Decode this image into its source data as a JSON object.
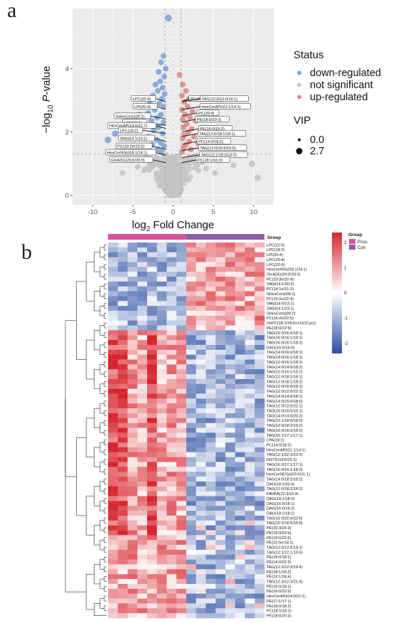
{
  "panel_labels": {
    "a": "a",
    "b": "b"
  },
  "chart_data": [
    {
      "type": "scatter",
      "xlabel_main": "log",
      "xlabel_sub": "2",
      "xlabel_rest": " Fold Change",
      "ylabel_prefix": "−log",
      "ylabel_sub": "10",
      "ylabel_italic": "P",
      "ylabel_rest": "-value",
      "xlim": [
        -12.5,
        12.5
      ],
      "ylim": [
        -0.3,
        5.9
      ],
      "xticks": [
        -10,
        -5,
        0,
        5,
        10
      ],
      "yticks": [
        0,
        2,
        4
      ],
      "threshold_x": [
        -1,
        1
      ],
      "threshold_y": 1.3,
      "legend_status_title": "Status",
      "legend_status": [
        {
          "label": "down-regulated",
          "color": "#7ea6d8"
        },
        {
          "label": "not significant",
          "color": "#c4c4c4"
        },
        {
          "label": "up-regulated",
          "color": "#e08b84"
        }
      ],
      "legend_vip_title": "VIP",
      "legend_vip": [
        {
          "label": "0.0",
          "r": 2
        },
        {
          "label": "2.7",
          "r": 4.5
        }
      ],
      "annotations": [
        {
          "label": "LPC(20:4)",
          "x": -0.9,
          "y": 3.05
        },
        {
          "label": "PC(20:3e/20:4)",
          "x": 0.2,
          "y": 3.05
        },
        {
          "label": "TAG(12:0/12:0/14:1)",
          "x": 1.6,
          "y": 3.05
        },
        {
          "label": "LPI(20:4)",
          "x": -0.7,
          "y": 2.8
        },
        {
          "label": "HexCerAP(t21:1/14:1)",
          "x": 1.6,
          "y": 2.8
        },
        {
          "label": "PC(20:4)",
          "x": 1.2,
          "y": 2.6
        },
        {
          "label": "SHexCer(d39:2)",
          "x": -1.5,
          "y": 2.5
        },
        {
          "label": "PE(18:0/20:3)",
          "x": 1.0,
          "y": 2.4
        },
        {
          "label": "LPC(22:5)",
          "x": -2.0,
          "y": 2.3
        },
        {
          "label": "HexCerAP(14:0/21:1)",
          "x": -0.8,
          "y": 2.2
        },
        {
          "label": "PE(16:0/18:2)",
          "x": 1.4,
          "y": 2.1
        },
        {
          "label": "LPC(18:2)",
          "x": -2.5,
          "y": 2.05
        },
        {
          "label": "TAG(12:0/18:1/18:1)",
          "x": 1.3,
          "y": 1.95
        },
        {
          "label": "SM(d14:1/23:1)",
          "x": -1.0,
          "y": 1.8
        },
        {
          "label": "PC(14:0/18:2)",
          "x": 1.2,
          "y": 1.7
        },
        {
          "label": "PC(18:2e/22:6)",
          "x": -1.3,
          "y": 1.55
        },
        {
          "label": "TAG(12:0/16:5/16:5)",
          "x": 1.4,
          "y": 1.5
        },
        {
          "label": "HexCerNS(d18:1/24:1)",
          "x": -0.8,
          "y": 1.35
        },
        {
          "label": "TAG(12:1/18:0/18:0)",
          "x": 1.5,
          "y": 1.28
        },
        {
          "label": "GlcADG(20:0/20:0)",
          "x": -1.2,
          "y": 1.12
        },
        {
          "label": "PC(18:1/16:0)",
          "x": 1.1,
          "y": 1.12
        }
      ],
      "points": [
        {
          "x": -0.6,
          "y": 5.6,
          "s": "down",
          "r": 5
        },
        {
          "x": -1.2,
          "y": 4.4,
          "s": "down",
          "r": 4
        },
        {
          "x": -1.5,
          "y": 4.2,
          "s": "down",
          "r": 4
        },
        {
          "x": -0.9,
          "y": 4.0,
          "s": "down",
          "r": 4
        },
        {
          "x": -1.8,
          "y": 3.9,
          "s": "down",
          "r": 4
        },
        {
          "x": -1.1,
          "y": 3.75,
          "s": "down",
          "r": 4
        },
        {
          "x": -1.6,
          "y": 3.6,
          "s": "down",
          "r": 4
        },
        {
          "x": -2.2,
          "y": 3.5,
          "s": "down",
          "r": 4
        },
        {
          "x": -1.3,
          "y": 3.4,
          "s": "down",
          "r": 4
        },
        {
          "x": -1.9,
          "y": 3.3,
          "s": "down",
          "r": 4
        },
        {
          "x": -1.05,
          "y": 3.2,
          "s": "down",
          "r": 4
        },
        {
          "x": -2.5,
          "y": 3.15,
          "s": "down",
          "r": 4
        },
        {
          "x": -1.4,
          "y": 3.05,
          "s": "down",
          "r": 4
        },
        {
          "x": -2.9,
          "y": 2.95,
          "s": "down",
          "r": 4
        },
        {
          "x": -1.7,
          "y": 2.9,
          "s": "down",
          "r": 4
        },
        {
          "x": -1.2,
          "y": 2.8,
          "s": "down",
          "r": 4
        },
        {
          "x": -2.3,
          "y": 2.7,
          "s": "down",
          "r": 4
        },
        {
          "x": -3.1,
          "y": 2.6,
          "s": "down",
          "r": 4
        },
        {
          "x": -1.5,
          "y": 2.55,
          "s": "down",
          "r": 4
        },
        {
          "x": -2.0,
          "y": 2.45,
          "s": "down",
          "r": 4
        },
        {
          "x": -4.2,
          "y": 2.55,
          "s": "down",
          "r": 4
        },
        {
          "x": -2.7,
          "y": 2.35,
          "s": "down",
          "r": 4
        },
        {
          "x": -1.2,
          "y": 2.3,
          "s": "down",
          "r": 4
        },
        {
          "x": -3.5,
          "y": 2.2,
          "s": "down",
          "r": 4
        },
        {
          "x": -1.8,
          "y": 2.15,
          "s": "down",
          "r": 4
        },
        {
          "x": -2.4,
          "y": 2.05,
          "s": "down",
          "r": 4
        },
        {
          "x": -7.2,
          "y": 1.95,
          "s": "down",
          "r": 4.5
        },
        {
          "x": -1.3,
          "y": 1.95,
          "s": "down",
          "r": 4
        },
        {
          "x": -8.1,
          "y": 1.75,
          "s": "down",
          "r": 4.5
        },
        {
          "x": -3.0,
          "y": 1.85,
          "s": "down",
          "r": 4
        },
        {
          "x": -2.0,
          "y": 1.75,
          "s": "down",
          "r": 4
        },
        {
          "x": -1.5,
          "y": 1.65,
          "s": "down",
          "r": 4
        },
        {
          "x": -2.6,
          "y": 1.6,
          "s": "down",
          "r": 4
        },
        {
          "x": -1.1,
          "y": 1.55,
          "s": "down",
          "r": 4
        },
        {
          "x": -1.9,
          "y": 1.45,
          "s": "down",
          "r": 4
        },
        {
          "x": -1.4,
          "y": 1.38,
          "s": "down",
          "r": 4
        },
        {
          "x": 0.8,
          "y": 3.8,
          "s": "up",
          "r": 4
        },
        {
          "x": 1.2,
          "y": 3.5,
          "s": "up",
          "r": 4
        },
        {
          "x": 1.6,
          "y": 3.3,
          "s": "up",
          "r": 4
        },
        {
          "x": 1.1,
          "y": 3.15,
          "s": "up",
          "r": 4
        },
        {
          "x": 2.0,
          "y": 3.05,
          "s": "up",
          "r": 4
        },
        {
          "x": 1.4,
          "y": 2.95,
          "s": "up",
          "r": 4
        },
        {
          "x": 1.8,
          "y": 2.8,
          "s": "up",
          "r": 4
        },
        {
          "x": 1.1,
          "y": 2.7,
          "s": "up",
          "r": 4
        },
        {
          "x": 2.4,
          "y": 2.65,
          "s": "up",
          "r": 4
        },
        {
          "x": 1.5,
          "y": 2.55,
          "s": "up",
          "r": 4
        },
        {
          "x": 2.1,
          "y": 2.45,
          "s": "up",
          "r": 4
        },
        {
          "x": 1.2,
          "y": 2.4,
          "s": "up",
          "r": 4
        },
        {
          "x": 2.8,
          "y": 2.35,
          "s": "up",
          "r": 4
        },
        {
          "x": 1.7,
          "y": 2.25,
          "s": "up",
          "r": 4
        },
        {
          "x": 1.3,
          "y": 2.15,
          "s": "up",
          "r": 4
        },
        {
          "x": 2.3,
          "y": 2.1,
          "s": "up",
          "r": 4
        },
        {
          "x": 1.9,
          "y": 2.0,
          "s": "up",
          "r": 4
        },
        {
          "x": 1.4,
          "y": 1.9,
          "s": "up",
          "r": 4
        },
        {
          "x": 2.6,
          "y": 1.85,
          "s": "up",
          "r": 4
        },
        {
          "x": 1.2,
          "y": 1.8,
          "s": "up",
          "r": 4
        },
        {
          "x": 2.0,
          "y": 1.7,
          "s": "up",
          "r": 4
        },
        {
          "x": 1.6,
          "y": 1.6,
          "s": "up",
          "r": 4
        },
        {
          "x": 3.1,
          "y": 1.65,
          "s": "up",
          "r": 4
        },
        {
          "x": 1.3,
          "y": 1.5,
          "s": "up",
          "r": 4
        },
        {
          "x": 2.2,
          "y": 1.45,
          "s": "up",
          "r": 4
        },
        {
          "x": 1.1,
          "y": 1.38,
          "s": "up",
          "r": 4
        },
        {
          "x": 9.8,
          "y": 1.0,
          "s": "ns",
          "r": 4.5
        },
        {
          "x": 10.5,
          "y": 0.55,
          "s": "ns",
          "r": 4.5
        },
        {
          "x": 6.8,
          "y": 1.25,
          "s": "ns",
          "r": 4
        },
        {
          "x": 7.5,
          "y": 0.95,
          "s": "ns",
          "r": 4
        },
        {
          "x": 5.6,
          "y": 1.1,
          "s": "ns",
          "r": 4
        },
        {
          "x": 4.6,
          "y": 1.2,
          "s": "ns",
          "r": 4
        },
        {
          "x": 4.1,
          "y": 0.85,
          "s": "ns",
          "r": 4
        },
        {
          "x": 3.6,
          "y": 1.05,
          "s": "ns",
          "r": 4
        },
        {
          "x": 5.2,
          "y": 0.7,
          "s": "ns",
          "r": 4
        },
        {
          "x": 3.0,
          "y": 0.95,
          "s": "ns",
          "r": 4
        },
        {
          "x": -5.2,
          "y": 1.1,
          "s": "ns",
          "r": 4
        },
        {
          "x": -4.4,
          "y": 0.9,
          "s": "ns",
          "r": 4
        },
        {
          "x": -3.6,
          "y": 1.15,
          "s": "ns",
          "r": 4
        },
        {
          "x": -3.0,
          "y": 0.8,
          "s": "ns",
          "r": 4
        },
        {
          "x": -2.5,
          "y": 1.0,
          "s": "ns",
          "r": 4
        },
        {
          "x": -6.3,
          "y": 0.7,
          "s": "ns",
          "r": 4
        }
      ]
    },
    {
      "type": "heatmap",
      "group_header": "Group",
      "legend_title": "Group",
      "groups": [
        {
          "name": "Pcos",
          "color": "#d6549a"
        },
        {
          "name": "Con",
          "color": "#8b5da8"
        }
      ],
      "n_pcos": 8,
      "n_con": 8,
      "colorbar_ticks": [
        2,
        1,
        0,
        -1,
        -2
      ],
      "color_low": "#2b4ea2",
      "color_mid": "#ffffff",
      "color_high": "#d7262e",
      "rows": [
        "LPC(22:5)",
        "LPC(18:2)",
        "LPI(20:4)",
        "LPC(20:4)",
        "LPC(22:6)",
        "HexCerNS(d18:1/24:1)",
        "GlcADG(20:0/20:0)",
        "PC(20:3e/20:4)",
        "SM(d14:1/30:2)",
        "PC(14:1e/21:2)",
        "SHexCer(d38:1)",
        "PC(16:1e/22:4)",
        "SM(d14:0/23:1)",
        "SM(d14:1/23:1)",
        "SHexCer(d39:2)",
        "PC(16:2e/22:5)",
        "OxPC(18:1/18:0+1O(1Cyc))",
        "PE(18:0/22:5)",
        "TAG(16:0/16:0/18:1)",
        "TAG(16:0/16:1/18:1)",
        "TAG(16:0/16:1/18:2)",
        "DAG(16:0/16:0)",
        "TAG(14:0/16:0/18:1)",
        "TAG(14:0/16:1/18:1)",
        "TAG(12:0/16:1/18:1)",
        "TAG(14:0/14:0/18:2)",
        "TAG(12:0/16:1/18:2)",
        "TAG(12:0/18:1/18:1)",
        "TAG(12:0/18:1/18:2)",
        "TAG(12:0/16:0/18:1)",
        "TAG(12:0/12:0/22:2)",
        "TAG(14:0/14:0/18:1)",
        "TAG(14:0/16:0/18:0)",
        "TAG(12:0/12:0/22:1)",
        "TAG(16:0/16:0/16:1)",
        "TAG(14:0/14:0/20:2)",
        "TAG(12:1/18:0/18:0)",
        "TAG(12:0/18:2/19:2)",
        "TAG(16:0/16:0/18:2)",
        "TAG(16:1/17:1/17:1)",
        "LPA(18:2)",
        "PC(14:0/18:2)",
        "HexCerAP(t21:1/14:1)",
        "TAG(12:1/22:2/22:2)",
        "DGTS(19:0/21:1)",
        "TAG(16:2/17:1/17:1)",
        "TAG(16:0/16:1/18:3)",
        "HexCerNDS(d23:0/31:1)",
        "TAG(14:0/18:2/18:2)",
        "DAG(18:1/20:4)",
        "TAG(12:0/18:2/18:2)",
        "FAHFA(22:3/22:4)",
        "DAG(18:1/18:2)",
        "DAG(16:0/18:1)",
        "DAG(16:0/18:2)",
        "DAG(18:1/18:1)",
        "TAG(16:0/20:4/22:6)",
        "TAG(15:2/16:5/16:5)",
        "PE(20:3/20:3)",
        "PE(16:0/22:6)",
        "PE(18:0/22:6)",
        "PE(22:5e/18:1)",
        "TAG(12:0/12:0/14:1)",
        "TAG(12:1/12:1/19:5)",
        "PE(18:0/18:2)",
        "PE(14:0/22:3)",
        "TAG(12:2/12:2/19:4)",
        "PE(18:1/18:2)",
        "PE(14:1/24:4)",
        "TAG(12:3/12:3/21:4)",
        "PE(16:0/18:1)",
        "PE(16:0/22:5)",
        "HexCerAP(t14:0/21:1)",
        "PE(17:1/17:1)",
        "PE(16:0/18:2)",
        "PC(18:1/18:2)",
        "PE(18:0/20:3)"
      ]
    }
  ]
}
